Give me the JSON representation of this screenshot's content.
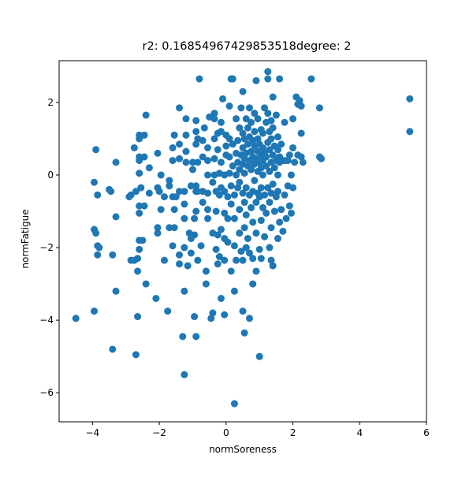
{
  "chart_data": {
    "type": "scatter",
    "title": "r2: 0.16854967429853518degree: 2",
    "xlabel": "normSoreness",
    "ylabel": "normFatigue",
    "xlim": [
      -5.0,
      6.0
    ],
    "ylim": [
      -6.8,
      3.15
    ],
    "xticks": [
      -4,
      -2,
      0,
      2,
      4,
      6
    ],
    "yticks": [
      -6,
      -4,
      -2,
      0,
      2
    ],
    "xtick_labels": [
      "−4",
      "−2",
      "0",
      "2",
      "4",
      "6"
    ],
    "ytick_labels": [
      "−6",
      "−4",
      "−2",
      "0",
      "2"
    ],
    "grid": false,
    "legend": "none",
    "marker_color": "#1f77b4",
    "points": [
      [
        -4.5,
        -3.95
      ],
      [
        -3.95,
        -3.75
      ],
      [
        -3.95,
        -1.5
      ],
      [
        -3.9,
        -1.6
      ],
      [
        -3.85,
        -2.2
      ],
      [
        -3.85,
        -1.95
      ],
      [
        -3.9,
        0.7
      ],
      [
        -3.95,
        -0.2
      ],
      [
        -3.85,
        -0.55
      ],
      [
        -3.8,
        -2.0
      ],
      [
        -3.5,
        -0.4
      ],
      [
        -3.45,
        -0.45
      ],
      [
        -3.4,
        -2.2
      ],
      [
        -3.4,
        -4.8
      ],
      [
        -3.3,
        -3.2
      ],
      [
        -3.3,
        -1.15
      ],
      [
        -3.3,
        0.35
      ],
      [
        -2.9,
        -0.6
      ],
      [
        -2.85,
        -2.35
      ],
      [
        -2.85,
        -0.55
      ],
      [
        -2.75,
        -2.35
      ],
      [
        -2.7,
        -0.45
      ],
      [
        -2.75,
        0.75
      ],
      [
        -2.7,
        -4.95
      ],
      [
        -2.65,
        -3.9
      ],
      [
        -2.65,
        -2.65
      ],
      [
        -2.65,
        -2.3
      ],
      [
        -2.6,
        -2.05
      ],
      [
        -2.6,
        -1.8
      ],
      [
        -2.6,
        -1.05
      ],
      [
        -2.6,
        -0.85
      ],
      [
        -2.55,
        -0.35
      ],
      [
        -2.6,
        0.05
      ],
      [
        -2.6,
        0.4
      ],
      [
        -2.6,
        0.5
      ],
      [
        -2.6,
        1.0
      ],
      [
        -2.6,
        1.1
      ],
      [
        -2.5,
        -1.8
      ],
      [
        -2.45,
        -0.85
      ],
      [
        -2.4,
        -3.0
      ],
      [
        -2.45,
        0.5
      ],
      [
        -2.45,
        1.1
      ],
      [
        -2.4,
        1.65
      ],
      [
        -2.3,
        -0.5
      ],
      [
        -2.3,
        0.2
      ],
      [
        -2.1,
        -3.4
      ],
      [
        -2.05,
        -1.45
      ],
      [
        -2.05,
        -1.6
      ],
      [
        -2.05,
        -0.35
      ],
      [
        -2.05,
        0.6
      ],
      [
        -2.0,
        -0.45
      ],
      [
        -1.95,
        -0.95
      ],
      [
        -1.95,
        0.0
      ],
      [
        -1.85,
        -2.35
      ],
      [
        -1.85,
        -0.6
      ],
      [
        -1.75,
        -3.75
      ],
      [
        -1.7,
        -1.45
      ],
      [
        -1.7,
        -0.3
      ],
      [
        -1.7,
        -0.15
      ],
      [
        -1.6,
        0.75
      ],
      [
        -1.6,
        -0.6
      ],
      [
        -1.6,
        0.4
      ],
      [
        -1.6,
        -1.95
      ],
      [
        -1.55,
        -0.95
      ],
      [
        -1.55,
        -1.45
      ],
      [
        -1.55,
        1.1
      ],
      [
        -1.5,
        -0.6
      ],
      [
        -1.4,
        -2.45
      ],
      [
        -1.4,
        -2.2
      ],
      [
        -1.4,
        -0.45
      ],
      [
        -1.4,
        0.45
      ],
      [
        -1.4,
        0.85
      ],
      [
        -1.4,
        1.85
      ],
      [
        -1.3,
        -4.45
      ],
      [
        -1.25,
        -5.5
      ],
      [
        -1.25,
        -3.2
      ],
      [
        -1.25,
        -2.0
      ],
      [
        -1.25,
        -1.2
      ],
      [
        -1.25,
        -0.8
      ],
      [
        -1.25,
        -0.45
      ],
      [
        -1.2,
        0.35
      ],
      [
        -1.2,
        0.65
      ],
      [
        -1.2,
        1.1
      ],
      [
        -1.2,
        1.55
      ],
      [
        -1.15,
        -2.5
      ],
      [
        -1.1,
        -1.6
      ],
      [
        -1.05,
        -1.75
      ],
      [
        -1.05,
        -0.3
      ],
      [
        -1.05,
        -2.15
      ],
      [
        -1.0,
        0.15
      ],
      [
        -1.0,
        0.35
      ],
      [
        -0.95,
        -3.9
      ],
      [
        -0.9,
        -4.45
      ],
      [
        -0.95,
        -1.65
      ],
      [
        -0.95,
        -1.2
      ],
      [
        -0.9,
        -1.0
      ],
      [
        -0.9,
        -0.45
      ],
      [
        -0.9,
        -0.3
      ],
      [
        -0.9,
        0.85
      ],
      [
        -0.9,
        1.2
      ],
      [
        -0.9,
        1.5
      ],
      [
        -0.85,
        -2.35
      ],
      [
        -0.85,
        -0.45
      ],
      [
        -0.85,
        0.35
      ],
      [
        -0.85,
        1.0
      ],
      [
        -0.8,
        2.65
      ],
      [
        -0.75,
        -1.95
      ],
      [
        -0.7,
        -0.75
      ],
      [
        -0.7,
        -0.45
      ],
      [
        -0.7,
        0.5
      ],
      [
        -0.7,
        0.95
      ],
      [
        -0.65,
        1.3
      ],
      [
        -0.6,
        -3.0
      ],
      [
        -0.6,
        -2.65
      ],
      [
        -0.55,
        -1.2
      ],
      [
        -0.55,
        -0.95
      ],
      [
        -0.55,
        -0.5
      ],
      [
        -0.55,
        0.0
      ],
      [
        -0.55,
        0.4
      ],
      [
        -0.55,
        0.75
      ],
      [
        -0.5,
        1.6
      ],
      [
        -0.45,
        -3.95
      ],
      [
        -0.4,
        -3.8
      ],
      [
        -0.4,
        -1.6
      ],
      [
        -0.4,
        -0.2
      ],
      [
        -0.35,
        0.0
      ],
      [
        -0.35,
        0.45
      ],
      [
        -0.35,
        1.0
      ],
      [
        -0.35,
        1.55
      ],
      [
        -0.35,
        1.7
      ],
      [
        -0.3,
        -2.05
      ],
      [
        -0.3,
        -1.0
      ],
      [
        -0.3,
        -0.45
      ],
      [
        -0.25,
        -2.45
      ],
      [
        -0.25,
        -1.65
      ],
      [
        -0.25,
        0.7
      ],
      [
        -0.25,
        1.15
      ],
      [
        -0.2,
        -2.25
      ],
      [
        -0.2,
        -0.55
      ],
      [
        -0.2,
        0.05
      ],
      [
        -0.15,
        -3.4
      ],
      [
        -0.15,
        -1.5
      ],
      [
        -0.15,
        -0.35
      ],
      [
        -0.15,
        0.35
      ],
      [
        -0.15,
        1.2
      ],
      [
        -0.15,
        1.45
      ],
      [
        -0.1,
        2.1
      ],
      [
        -0.05,
        -3.85
      ],
      [
        -0.05,
        -2.35
      ],
      [
        -0.05,
        -1.75
      ],
      [
        -0.05,
        -1.05
      ],
      [
        -0.05,
        -0.45
      ],
      [
        -0.05,
        0.0
      ],
      [
        0.0,
        0.55
      ],
      [
        0.0,
        0.8
      ],
      [
        0.0,
        1.1
      ],
      [
        0.05,
        -1.85
      ],
      [
        0.05,
        -1.2
      ],
      [
        0.05,
        -0.6
      ],
      [
        0.1,
        0.05
      ],
      [
        0.1,
        0.5
      ],
      [
        0.1,
        1.0
      ],
      [
        0.1,
        1.9
      ],
      [
        0.15,
        2.65
      ],
      [
        0.15,
        -2.65
      ],
      [
        0.15,
        -0.8
      ],
      [
        0.15,
        -0.3
      ],
      [
        0.2,
        0.25
      ],
      [
        0.2,
        0.85
      ],
      [
        0.2,
        2.65
      ],
      [
        0.25,
        -6.3
      ],
      [
        0.25,
        -3.2
      ],
      [
        0.25,
        -1.95
      ],
      [
        0.25,
        -1.2
      ],
      [
        0.25,
        -0.55
      ],
      [
        0.3,
        -2.35
      ],
      [
        0.3,
        0.0
      ],
      [
        0.3,
        0.6
      ],
      [
        0.3,
        1.55
      ],
      [
        0.35,
        -0.35
      ],
      [
        0.35,
        0.35
      ],
      [
        0.35,
        0.95
      ],
      [
        0.4,
        -1.6
      ],
      [
        0.4,
        -0.95
      ],
      [
        0.4,
        -0.2
      ],
      [
        0.4,
        0.15
      ],
      [
        0.4,
        1.3
      ],
      [
        0.45,
        -2.1
      ],
      [
        0.45,
        0.55
      ],
      [
        0.45,
        1.85
      ],
      [
        0.5,
        -3.75
      ],
      [
        0.5,
        -2.35
      ],
      [
        0.5,
        -0.5
      ],
      [
        0.5,
        0.3
      ],
      [
        0.5,
        0.75
      ],
      [
        0.5,
        1.15
      ],
      [
        0.5,
        2.3
      ],
      [
        0.55,
        -4.35
      ],
      [
        0.55,
        -1.45
      ],
      [
        0.55,
        -0.75
      ],
      [
        0.55,
        0.05
      ],
      [
        0.55,
        0.45
      ],
      [
        0.55,
        1.0
      ],
      [
        0.6,
        -2.0
      ],
      [
        0.6,
        -1.1
      ],
      [
        0.6,
        -0.35
      ],
      [
        0.6,
        0.6
      ],
      [
        0.6,
        1.55
      ],
      [
        0.65,
        -1.75
      ],
      [
        0.65,
        0.25
      ],
      [
        0.65,
        0.85
      ],
      [
        0.65,
        1.3
      ],
      [
        0.7,
        -3.95
      ],
      [
        0.7,
        -2.15
      ],
      [
        0.7,
        -0.55
      ],
      [
        0.7,
        0.4
      ],
      [
        0.7,
        1.05
      ],
      [
        0.7,
        1.85
      ],
      [
        0.75,
        -0.9
      ],
      [
        0.75,
        0.15
      ],
      [
        0.75,
        0.65
      ],
      [
        0.75,
        1.45
      ],
      [
        0.8,
        -3.0
      ],
      [
        0.8,
        -2.3
      ],
      [
        0.8,
        -1.3
      ],
      [
        0.8,
        -0.45
      ],
      [
        0.8,
        0.5
      ],
      [
        0.8,
        0.95
      ],
      [
        0.85,
        -0.15
      ],
      [
        0.85,
        0.3
      ],
      [
        0.85,
        0.8
      ],
      [
        0.85,
        1.2
      ],
      [
        0.85,
        1.7
      ],
      [
        0.9,
        -2.65
      ],
      [
        0.9,
        -1.6
      ],
      [
        0.9,
        -0.75
      ],
      [
        0.9,
        0.45
      ],
      [
        0.9,
        2.6
      ],
      [
        0.95,
        -0.5
      ],
      [
        0.95,
        0.1
      ],
      [
        0.95,
        0.65
      ],
      [
        0.95,
        1.0
      ],
      [
        0.95,
        1.55
      ],
      [
        1.0,
        -5.0
      ],
      [
        1.0,
        -2.05
      ],
      [
        1.0,
        -0.6
      ],
      [
        1.0,
        0.35
      ],
      [
        1.0,
        0.85
      ],
      [
        1.05,
        -2.3
      ],
      [
        1.05,
        -1.25
      ],
      [
        1.05,
        -0.35
      ],
      [
        1.05,
        0.2
      ],
      [
        1.05,
        0.55
      ],
      [
        1.05,
        1.25
      ],
      [
        1.1,
        -0.9
      ],
      [
        1.1,
        0.0
      ],
      [
        1.1,
        0.4
      ],
      [
        1.1,
        0.75
      ],
      [
        1.1,
        1.15
      ],
      [
        1.15,
        -1.7
      ],
      [
        1.15,
        -0.55
      ],
      [
        1.15,
        0.6
      ],
      [
        1.15,
        1.85
      ],
      [
        1.2,
        -1.05
      ],
      [
        1.2,
        0.25
      ],
      [
        1.2,
        0.5
      ],
      [
        1.2,
        1.45
      ],
      [
        1.25,
        2.85
      ],
      [
        1.25,
        2.65
      ],
      [
        1.25,
        -0.35
      ],
      [
        1.25,
        0.9
      ],
      [
        1.25,
        1.7
      ],
      [
        1.3,
        -2.0
      ],
      [
        1.3,
        -0.75
      ],
      [
        1.3,
        0.1
      ],
      [
        1.3,
        0.7
      ],
      [
        1.3,
        1.2
      ],
      [
        1.35,
        -2.35
      ],
      [
        1.35,
        -1.45
      ],
      [
        1.35,
        -0.5
      ],
      [
        1.35,
        0.35
      ],
      [
        1.35,
        1.0
      ],
      [
        1.35,
        1.5
      ],
      [
        1.4,
        -2.5
      ],
      [
        1.4,
        -0.25
      ],
      [
        1.4,
        0.55
      ],
      [
        1.4,
        1.3
      ],
      [
        1.4,
        2.15
      ],
      [
        1.45,
        -1.0
      ],
      [
        1.45,
        0.2
      ],
      [
        1.45,
        0.8
      ],
      [
        1.5,
        -0.6
      ],
      [
        1.5,
        0.4
      ],
      [
        1.5,
        1.65
      ],
      [
        1.55,
        -1.75
      ],
      [
        1.55,
        -0.45
      ],
      [
        1.55,
        0.0
      ],
      [
        1.55,
        0.7
      ],
      [
        1.55,
        1.05
      ],
      [
        1.6,
        -1.3
      ],
      [
        1.6,
        0.35
      ],
      [
        1.6,
        0.5
      ],
      [
        1.6,
        2.65
      ],
      [
        1.65,
        -0.95
      ],
      [
        1.65,
        0.85
      ],
      [
        1.7,
        -1.55
      ],
      [
        1.7,
        0.4
      ],
      [
        1.75,
        -0.55
      ],
      [
        1.75,
        0.4
      ],
      [
        1.75,
        1.45
      ],
      [
        1.8,
        -1.2
      ],
      [
        1.85,
        -0.3
      ],
      [
        1.85,
        0.4
      ],
      [
        1.9,
        -0.85
      ],
      [
        1.9,
        0.55
      ],
      [
        1.95,
        0.0
      ],
      [
        1.95,
        -1.05
      ],
      [
        2.0,
        -0.35
      ],
      [
        2.0,
        0.75
      ],
      [
        2.0,
        1.55
      ],
      [
        2.05,
        0.35
      ],
      [
        2.1,
        2.15
      ],
      [
        2.15,
        0.55
      ],
      [
        2.15,
        1.95
      ],
      [
        2.2,
        2.05
      ],
      [
        2.25,
        0.5
      ],
      [
        2.25,
        1.15
      ],
      [
        2.25,
        1.9
      ],
      [
        2.3,
        0.35
      ],
      [
        2.55,
        2.65
      ],
      [
        2.8,
        1.85
      ],
      [
        2.8,
        0.5
      ],
      [
        2.85,
        0.45
      ],
      [
        5.5,
        2.1
      ],
      [
        5.5,
        1.2
      ]
    ]
  }
}
